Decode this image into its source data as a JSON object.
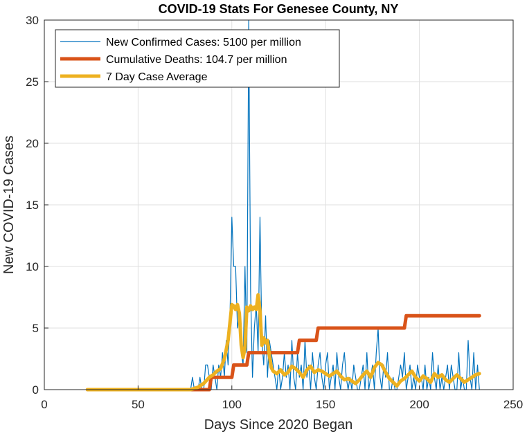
{
  "chart_data": {
    "type": "line",
    "title": "COVID-19 Stats For Genesee County, NY",
    "xlabel": "Days Since 2020 Began",
    "ylabel": "New COVID-19 Cases",
    "xlim": [
      0,
      250
    ],
    "ylim": [
      0,
      30
    ],
    "xticks": [
      0,
      50,
      100,
      150,
      200,
      250
    ],
    "yticks": [
      0,
      5,
      10,
      15,
      20,
      25,
      30
    ],
    "grid": true,
    "legend_position": "top-left",
    "series": [
      {
        "name": "New Confirmed Cases: 5100 per million",
        "color": "#0072BD",
        "x": [
          23,
          40,
          60,
          78,
          79,
          80,
          81,
          82,
          83,
          84,
          85,
          86,
          87,
          88,
          89,
          90,
          91,
          92,
          93,
          94,
          95,
          96,
          97,
          98,
          99,
          100,
          101,
          102,
          103,
          104,
          105,
          106,
          107,
          108,
          109,
          110,
          111,
          112,
          113,
          114,
          115,
          116,
          117,
          118,
          119,
          120,
          121,
          122,
          123,
          124,
          125,
          126,
          127,
          128,
          129,
          130,
          131,
          132,
          133,
          134,
          135,
          136,
          137,
          138,
          139,
          140,
          141,
          142,
          143,
          144,
          145,
          146,
          147,
          148,
          149,
          150,
          151,
          152,
          153,
          154,
          155,
          156,
          157,
          158,
          159,
          160,
          161,
          162,
          163,
          164,
          165,
          166,
          167,
          168,
          169,
          170,
          171,
          172,
          173,
          174,
          175,
          176,
          177,
          178,
          179,
          180,
          181,
          182,
          183,
          184,
          185,
          186,
          187,
          188,
          189,
          190,
          191,
          192,
          193,
          194,
          195,
          196,
          197,
          198,
          199,
          200,
          201,
          202,
          203,
          204,
          205,
          206,
          207,
          208,
          209,
          210,
          211,
          212,
          213,
          214,
          215,
          216,
          217,
          218,
          219,
          220,
          221,
          222,
          223,
          224,
          225,
          226,
          227,
          228,
          229,
          230,
          231,
          232
        ],
        "y": [
          0,
          0,
          0,
          0,
          1,
          0,
          0,
          0,
          1,
          0,
          0,
          2,
          2,
          1,
          0,
          2,
          1,
          0,
          2,
          1,
          3,
          1,
          4,
          2,
          6,
          14,
          10,
          10,
          5,
          6,
          3,
          2,
          10,
          3,
          30,
          8,
          1,
          5,
          7,
          3,
          14,
          4,
          2,
          6,
          1,
          4,
          3,
          2,
          1,
          0,
          2,
          0,
          1,
          3,
          1,
          2,
          0,
          4,
          1,
          0,
          3,
          1,
          2,
          0,
          4,
          1,
          2,
          0,
          3,
          1,
          0,
          2,
          3,
          1,
          0,
          2,
          3,
          0,
          1,
          2,
          0,
          3,
          1,
          0,
          2,
          3,
          1,
          0,
          1,
          0,
          2,
          1,
          0,
          0,
          1,
          2,
          0,
          3,
          0,
          1,
          2,
          0,
          3,
          5,
          1,
          0,
          2,
          1,
          3,
          0,
          0,
          1,
          0,
          0,
          1,
          2,
          1,
          3,
          0,
          1,
          2,
          0,
          1,
          0,
          2,
          1,
          1,
          0,
          2,
          0,
          1,
          0,
          3,
          1,
          0,
          2,
          0,
          1,
          0,
          1,
          2,
          0,
          2,
          1,
          0,
          0,
          3,
          0,
          1,
          0,
          0,
          4,
          1,
          0,
          3,
          0,
          2,
          0
        ]
      },
      {
        "name": "Cumulative Deaths: 104.7 per million",
        "color": "#D95319",
        "x": [
          23,
          88,
          89,
          100,
          101,
          108,
          109,
          112,
          113,
          135,
          136,
          145,
          146,
          192,
          193,
          232
        ],
        "y": [
          0,
          0,
          1,
          1,
          2,
          2,
          3,
          3,
          3,
          3,
          4,
          4,
          5,
          5,
          6,
          6
        ]
      },
      {
        "name": "7 Day Case Average",
        "color": "#EDB120",
        "x": [
          23,
          40,
          60,
          78,
          82,
          85,
          88,
          90,
          92,
          94,
          96,
          98,
          100,
          101,
          102,
          103,
          104,
          105,
          106,
          107,
          108,
          109,
          110,
          111,
          112,
          113,
          114,
          115,
          116,
          117,
          118,
          119,
          120,
          121,
          122,
          124,
          126,
          128,
          130,
          132,
          134,
          136,
          138,
          140,
          142,
          144,
          146,
          148,
          150,
          152,
          154,
          156,
          158,
          160,
          162,
          164,
          166,
          168,
          170,
          172,
          174,
          176,
          178,
          180,
          182,
          184,
          186,
          188,
          190,
          192,
          194,
          196,
          198,
          200,
          202,
          204,
          206,
          208,
          210,
          212,
          214,
          216,
          218,
          220,
          222,
          224,
          226,
          228,
          230,
          232
        ],
        "y": [
          0,
          0,
          0,
          0,
          0.2,
          0.5,
          1,
          1.2,
          1.5,
          1.7,
          2.5,
          4,
          6.9,
          6.8,
          6.5,
          6.9,
          6.2,
          3.6,
          2.6,
          3.4,
          6.7,
          6.4,
          6.8,
          6.5,
          6.7,
          6.5,
          7.7,
          6.4,
          3.6,
          4.2,
          3.8,
          4.0,
          2.8,
          1.8,
          1.5,
          1.3,
          1.6,
          1.2,
          1.4,
          1.9,
          1.7,
          1.4,
          1.0,
          1.6,
          1.9,
          1.4,
          1.6,
          1.5,
          1.3,
          1.1,
          1.3,
          1.5,
          1.1,
          0.8,
          0.9,
          0.7,
          0.5,
          0.8,
          1.2,
          1.5,
          1.0,
          1.8,
          2.2,
          2.0,
          1.4,
          0.9,
          0.6,
          0.3,
          0.7,
          0.9,
          1.2,
          1.5,
          1.0,
          0.7,
          1.1,
          0.9,
          0.6,
          1.3,
          1.0,
          1.2,
          0.8,
          0.6,
          0.9,
          1.2,
          0.9,
          0.6,
          0.8,
          1.0,
          1.2,
          1.3
        ]
      }
    ]
  }
}
